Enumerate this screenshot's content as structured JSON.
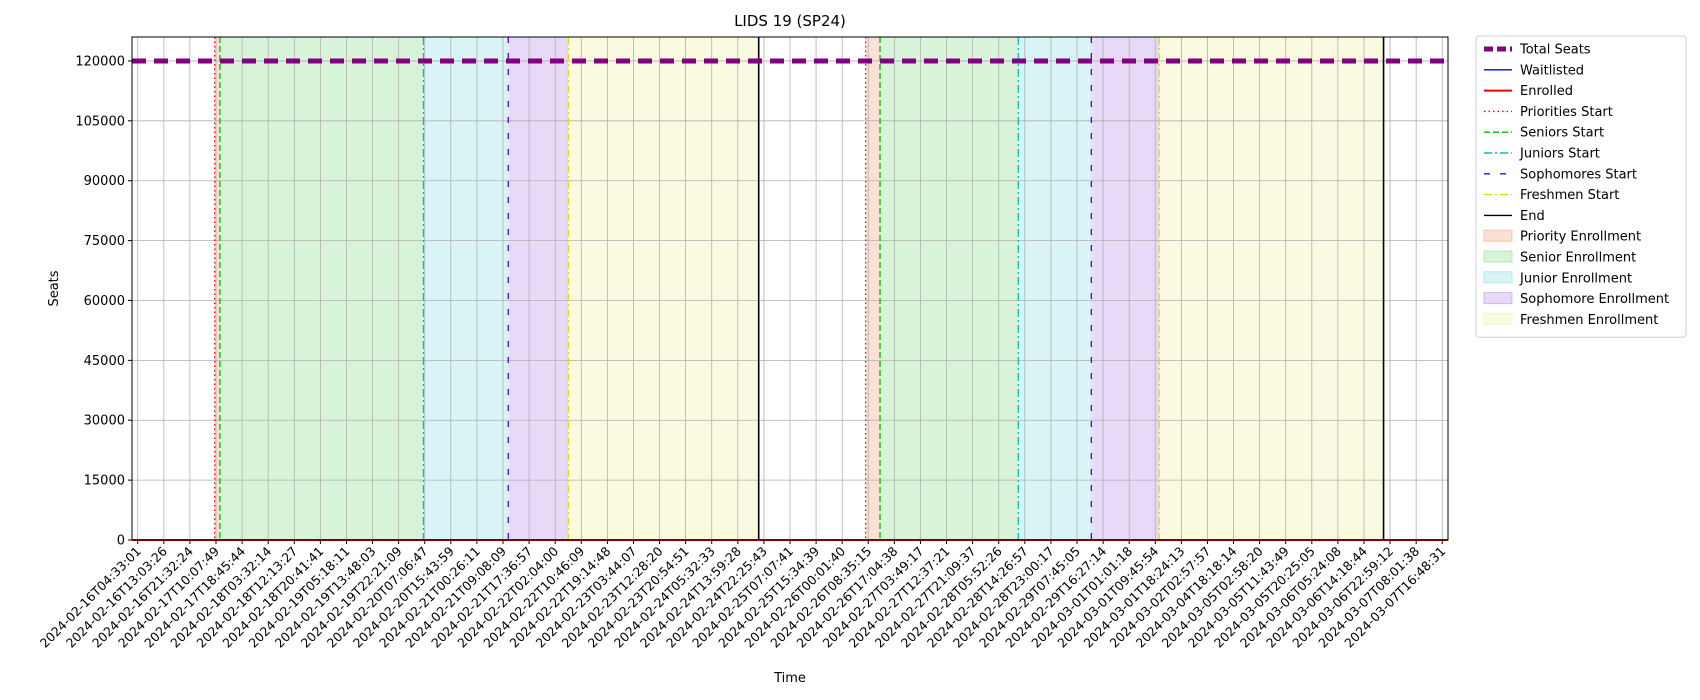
{
  "chart_data": {
    "type": "line",
    "title": "LIDS 19 (SP24)",
    "xlabel": "Time",
    "ylabel": "Seats",
    "ylim": [
      0,
      126000
    ],
    "y_ticks": [
      0,
      15000,
      30000,
      45000,
      60000,
      75000,
      90000,
      105000,
      120000
    ],
    "x_ticks": [
      "2024-02-16T04:33:01",
      "2024-02-16T13:03:26",
      "2024-02-16T21:32:24",
      "2024-02-17T10:07:49",
      "2024-02-17T18:45:44",
      "2024-02-18T03:32:14",
      "2024-02-18T12:13:27",
      "2024-02-18T20:41:41",
      "2024-02-19T05:18:11",
      "2024-02-19T13:48:03",
      "2024-02-19T22:21:09",
      "2024-02-20T07:06:47",
      "2024-02-20T15:43:59",
      "2024-02-21T00:26:11",
      "2024-02-21T09:08:09",
      "2024-02-21T17:36:57",
      "2024-02-22T02:04:00",
      "2024-02-22T10:46:09",
      "2024-02-22T19:14:48",
      "2024-02-23T03:44:07",
      "2024-02-23T12:28:20",
      "2024-02-23T20:54:51",
      "2024-02-24T05:32:33",
      "2024-02-24T13:59:28",
      "2024-02-24T22:25:43",
      "2024-02-25T07:07:41",
      "2024-02-25T15:34:39",
      "2024-02-26T00:01:40",
      "2024-02-26T08:35:15",
      "2024-02-26T17:04:38",
      "2024-02-27T03:49:17",
      "2024-02-27T12:37:21",
      "2024-02-27T21:09:37",
      "2024-02-28T05:52:26",
      "2024-02-28T14:26:57",
      "2024-02-28T23:00:17",
      "2024-02-29T07:45:05",
      "2024-02-29T16:27:14",
      "2024-03-01T01:01:18",
      "2024-03-01T09:45:54",
      "2024-03-01T18:24:13",
      "2024-03-02T02:57:57",
      "2024-03-04T18:18:14",
      "2024-03-05T02:58:20",
      "2024-03-05T11:43:49",
      "2024-03-05T20:25:05",
      "2024-03-06T05:24:08",
      "2024-03-06T14:18:44",
      "2024-03-06T22:59:12",
      "2024-03-07T08:01:38",
      "2024-03-07T16:48:31"
    ],
    "series": [
      {
        "name": "Total Seats",
        "color": "#800080",
        "style": "dashed-thick",
        "values": [
          120000,
          120000
        ]
      },
      {
        "name": "Waitlisted",
        "color": "#0000ff",
        "style": "solid",
        "values": [
          0,
          0
        ]
      },
      {
        "name": "Enrolled",
        "color": "#ff0000",
        "style": "solid-thick",
        "values": [
          0,
          0
        ]
      }
    ],
    "markers": [
      {
        "name": "Priorities Start",
        "color": "#ff0000",
        "style": "dotted",
        "positions": [
          2.95,
          27.9
        ]
      },
      {
        "name": "Seniors Start",
        "color": "#00bb00",
        "style": "dashed",
        "positions": [
          3.15,
          28.45
        ]
      },
      {
        "name": "Juniors Start",
        "color": "#00bfbf",
        "style": "dashdot",
        "positions": [
          10.95,
          33.75
        ]
      },
      {
        "name": "Sophomores Start",
        "color": "#5500dd",
        "style": "loosedash",
        "positions": [
          14.2,
          36.55
        ]
      },
      {
        "name": "Freshmen Start",
        "color": "#dddd00",
        "style": "dashdot",
        "positions": [
          16.5,
          39.15
        ]
      },
      {
        "name": "End",
        "color": "#000000",
        "style": "solid",
        "positions": [
          23.8,
          47.75
        ]
      }
    ],
    "regions": [
      {
        "name": "Priority Enrollment",
        "color": "#f4a582",
        "spans": [
          [
            2.95,
            3.15
          ],
          [
            27.9,
            28.45
          ]
        ]
      },
      {
        "name": "Senior Enrollment",
        "color": "#90e090",
        "spans": [
          [
            3.15,
            10.95
          ],
          [
            28.45,
            33.75
          ]
        ]
      },
      {
        "name": "Junior Enrollment",
        "color": "#8fe0e6",
        "spans": [
          [
            10.95,
            14.2
          ],
          [
            33.75,
            36.55
          ]
        ]
      },
      {
        "name": "Sophomore Enrollment",
        "color": "#b996ec",
        "spans": [
          [
            14.2,
            16.5
          ],
          [
            36.55,
            39.15
          ]
        ]
      },
      {
        "name": "Freshmen Enrollment",
        "color": "#f0f0a8",
        "spans": [
          [
            16.5,
            23.8
          ],
          [
            39.15,
            47.75
          ]
        ]
      }
    ],
    "grid": true,
    "legend": "outside-right"
  }
}
